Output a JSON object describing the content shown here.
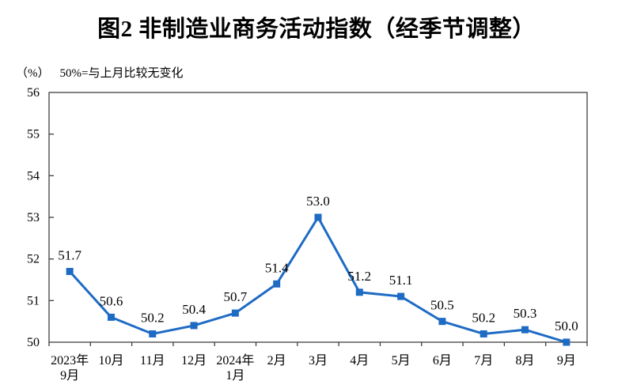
{
  "chart_data": {
    "type": "line",
    "title": "图2 非制造业商务活动指数（经季节调整）",
    "unit_label": "（%）",
    "note": "50%=与上月比较无变化",
    "categories": [
      "2023年9月",
      "10月",
      "11月",
      "12月",
      "2024年1月",
      "2月",
      "3月",
      "4月",
      "5月",
      "6月",
      "7月",
      "8月",
      "9月"
    ],
    "category_lines": [
      [
        "2023年",
        "9月"
      ],
      [
        "10月"
      ],
      [
        "11月"
      ],
      [
        "12月"
      ],
      [
        "2024年",
        "1月"
      ],
      [
        "2月"
      ],
      [
        "3月"
      ],
      [
        "4月"
      ],
      [
        "5月"
      ],
      [
        "6月"
      ],
      [
        "7月"
      ],
      [
        "8月"
      ],
      [
        "9月"
      ]
    ],
    "values": [
      51.7,
      50.6,
      50.2,
      50.4,
      50.7,
      51.4,
      53.0,
      51.2,
      51.1,
      50.5,
      50.2,
      50.3,
      50.0
    ],
    "data_labels": [
      "51.7",
      "50.6",
      "50.2",
      "50.4",
      "50.7",
      "51.4",
      "53.0",
      "51.2",
      "51.1",
      "50.5",
      "50.2",
      "50.3",
      "50.0"
    ],
    "ylim": [
      50,
      56
    ],
    "y_ticks": [
      50,
      51,
      52,
      53,
      54,
      55,
      56
    ],
    "series_name": "非制造业商务活动指数",
    "line_color": "#1E6BC4",
    "axis_color": "#3F3F3F",
    "text_color": "#000000",
    "marker": "square",
    "grid": false,
    "legend": "none"
  }
}
